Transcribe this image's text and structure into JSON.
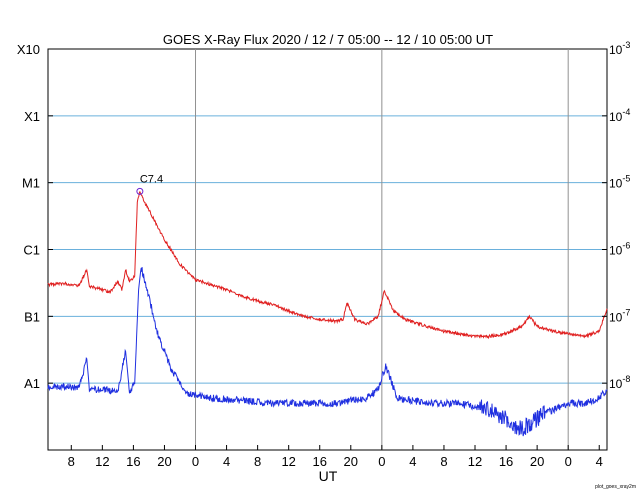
{
  "chart_data": {
    "type": "line",
    "title": "GOES X-Ray Flux   2020 / 12 /  7   05:00 -- 12 / 10   05:00   UT",
    "xlabel": "UT",
    "ylabel": "",
    "y_scale": "log",
    "ylim": [
      1e-09,
      0.001
    ],
    "xlim": [
      "2020-12-07 05:00",
      "2020-12-10 05:00"
    ],
    "grid": true,
    "left_tick_labels": [
      {
        "label": "A1",
        "value": 1e-08
      },
      {
        "label": "B1",
        "value": 1e-07
      },
      {
        "label": "C1",
        "value": 1e-06
      },
      {
        "label": "M1",
        "value": 1e-05
      },
      {
        "label": "X1",
        "value": 0.0001
      },
      {
        "label": "X10",
        "value": 0.001
      }
    ],
    "right_tick_labels": [
      {
        "base": "10",
        "exp": "-3",
        "value": 0.001
      },
      {
        "base": "10",
        "exp": "-4",
        "value": 0.0001
      },
      {
        "base": "10",
        "exp": "-5",
        "value": 1e-05
      },
      {
        "base": "10",
        "exp": "-6",
        "value": 1e-06
      },
      {
        "base": "10",
        "exp": "-7",
        "value": 1e-07
      },
      {
        "base": "10",
        "exp": "-8",
        "value": 1e-08
      }
    ],
    "x_tick_labels": [
      {
        "label": "8",
        "time": "2020-12-07 08:00"
      },
      {
        "label": "12",
        "time": "2020-12-07 12:00"
      },
      {
        "label": "16",
        "time": "2020-12-07 16:00"
      },
      {
        "label": "20",
        "time": "2020-12-07 20:00"
      },
      {
        "label": "0",
        "time": "2020-12-08 00:00"
      },
      {
        "label": "4",
        "time": "2020-12-08 04:00"
      },
      {
        "label": "8",
        "time": "2020-12-08 08:00"
      },
      {
        "label": "12",
        "time": "2020-12-08 12:00"
      },
      {
        "label": "16",
        "time": "2020-12-08 16:00"
      },
      {
        "label": "20",
        "time": "2020-12-08 20:00"
      },
      {
        "label": "0",
        "time": "2020-12-09 00:00"
      },
      {
        "label": "4",
        "time": "2020-12-09 04:00"
      },
      {
        "label": "8",
        "time": "2020-12-09 08:00"
      },
      {
        "label": "12",
        "time": "2020-12-09 12:00"
      },
      {
        "label": "16",
        "time": "2020-12-09 16:00"
      },
      {
        "label": "20",
        "time": "2020-12-09 20:00"
      },
      {
        "label": "0",
        "time": "2020-12-10 00:00"
      },
      {
        "label": "4",
        "time": "2020-12-10 04:00"
      }
    ],
    "day_boundaries": [
      "2020-12-08 00:00",
      "2020-12-09 00:00",
      "2020-12-10 00:00"
    ],
    "series": [
      {
        "color": "#e02020",
        "points": [
          [
            "2020-12-07 05:00",
            3e-07
          ],
          [
            "2020-12-07 07:00",
            3.1e-07
          ],
          [
            "2020-12-07 09:00",
            2.9e-07
          ],
          [
            "2020-12-07 10:00",
            5e-07
          ],
          [
            "2020-12-07 10:20",
            2.8e-07
          ],
          [
            "2020-12-07 12:00",
            2.5e-07
          ],
          [
            "2020-12-07 13:00",
            2.3e-07
          ],
          [
            "2020-12-07 14:00",
            3.3e-07
          ],
          [
            "2020-12-07 14:30",
            2.5e-07
          ],
          [
            "2020-12-07 15:00",
            5e-07
          ],
          [
            "2020-12-07 15:30",
            3.3e-07
          ],
          [
            "2020-12-07 16:10",
            4e-07
          ],
          [
            "2020-12-07 16:30",
            5e-06
          ],
          [
            "2020-12-07 16:50",
            7.4e-06
          ],
          [
            "2020-12-07 17:30",
            5e-06
          ],
          [
            "2020-12-07 18:30",
            3e-06
          ],
          [
            "2020-12-07 20:00",
            1.4e-06
          ],
          [
            "2020-12-07 22:00",
            6e-07
          ],
          [
            "2020-12-08 00:00",
            3.5e-07
          ],
          [
            "2020-12-08 02:00",
            3e-07
          ],
          [
            "2020-12-08 04:00",
            2.5e-07
          ],
          [
            "2020-12-08 06:00",
            2e-07
          ],
          [
            "2020-12-08 08:00",
            1.7e-07
          ],
          [
            "2020-12-08 10:00",
            1.5e-07
          ],
          [
            "2020-12-08 12:00",
            1.2e-07
          ],
          [
            "2020-12-08 14:00",
            1e-07
          ],
          [
            "2020-12-08 16:00",
            9e-08
          ],
          [
            "2020-12-08 18:00",
            8.5e-08
          ],
          [
            "2020-12-08 19:00",
            9e-08
          ],
          [
            "2020-12-08 19:30",
            1.6e-07
          ],
          [
            "2020-12-08 20:30",
            9e-08
          ],
          [
            "2020-12-08 22:00",
            7.5e-08
          ],
          [
            "2020-12-08 23:30",
            1e-07
          ],
          [
            "2020-12-09 00:20",
            2.4e-07
          ],
          [
            "2020-12-09 01:30",
            1.2e-07
          ],
          [
            "2020-12-09 03:00",
            9e-08
          ],
          [
            "2020-12-09 06:00",
            7e-08
          ],
          [
            "2020-12-09 08:00",
            6e-08
          ],
          [
            "2020-12-09 10:00",
            5.5e-08
          ],
          [
            "2020-12-09 12:00",
            5e-08
          ],
          [
            "2020-12-09 14:00",
            5e-08
          ],
          [
            "2020-12-09 16:00",
            5.5e-08
          ],
          [
            "2020-12-09 18:00",
            7e-08
          ],
          [
            "2020-12-09 19:00",
            1e-07
          ],
          [
            "2020-12-09 20:00",
            7e-08
          ],
          [
            "2020-12-09 22:00",
            6e-08
          ],
          [
            "2020-12-10 00:00",
            5.5e-08
          ],
          [
            "2020-12-10 02:00",
            5e-08
          ],
          [
            "2020-12-10 04:00",
            6e-08
          ],
          [
            "2020-12-10 05:00",
            1.3e-07
          ]
        ]
      },
      {
        "color": "#2030e0",
        "points": [
          [
            "2020-12-07 05:00",
            9e-09
          ],
          [
            "2020-12-07 07:00",
            9e-09
          ],
          [
            "2020-12-07 09:00",
            8.5e-09
          ],
          [
            "2020-12-07 10:00",
            2.3e-08
          ],
          [
            "2020-12-07 10:20",
            8e-09
          ],
          [
            "2020-12-07 12:00",
            8e-09
          ],
          [
            "2020-12-07 14:00",
            7.5e-09
          ],
          [
            "2020-12-07 15:00",
            3e-08
          ],
          [
            "2020-12-07 15:30",
            7e-09
          ],
          [
            "2020-12-07 16:10",
            1e-08
          ],
          [
            "2020-12-07 16:40",
            2.5e-07
          ],
          [
            "2020-12-07 17:00",
            5.5e-07
          ],
          [
            "2020-12-07 18:00",
            2e-07
          ],
          [
            "2020-12-07 19:00",
            6e-08
          ],
          [
            "2020-12-07 21:00",
            1.5e-08
          ],
          [
            "2020-12-07 23:00",
            7e-09
          ],
          [
            "2020-12-08 02:00",
            6e-09
          ],
          [
            "2020-12-08 06:00",
            5.5e-09
          ],
          [
            "2020-12-08 10:00",
            5e-09
          ],
          [
            "2020-12-08 14:00",
            5e-09
          ],
          [
            "2020-12-08 18:00",
            5e-09
          ],
          [
            "2020-12-08 22:00",
            6e-09
          ],
          [
            "2020-12-08 23:30",
            8e-09
          ],
          [
            "2020-12-09 00:30",
            1.8e-08
          ],
          [
            "2020-12-09 02:00",
            6e-09
          ],
          [
            "2020-12-09 06:00",
            5e-09
          ],
          [
            "2020-12-09 10:00",
            5e-09
          ],
          [
            "2020-12-09 14:00",
            4e-09
          ],
          [
            "2020-12-09 16:00",
            3e-09
          ],
          [
            "2020-12-09 18:00",
            2e-09
          ],
          [
            "2020-12-09 20:00",
            3e-09
          ],
          [
            "2020-12-09 22:00",
            4e-09
          ],
          [
            "2020-12-10 00:00",
            5e-09
          ],
          [
            "2020-12-10 02:00",
            5e-09
          ],
          [
            "2020-12-10 04:00",
            6e-09
          ],
          [
            "2020-12-10 05:00",
            8e-09
          ]
        ]
      }
    ],
    "annotations": [
      {
        "text": "C7.4",
        "time": "2020-12-07 16:50",
        "value": 7.4e-06,
        "marker": "circle",
        "marker_color": "#6a1fd0"
      }
    ],
    "footer_note": "plot_goes_xray2m"
  }
}
